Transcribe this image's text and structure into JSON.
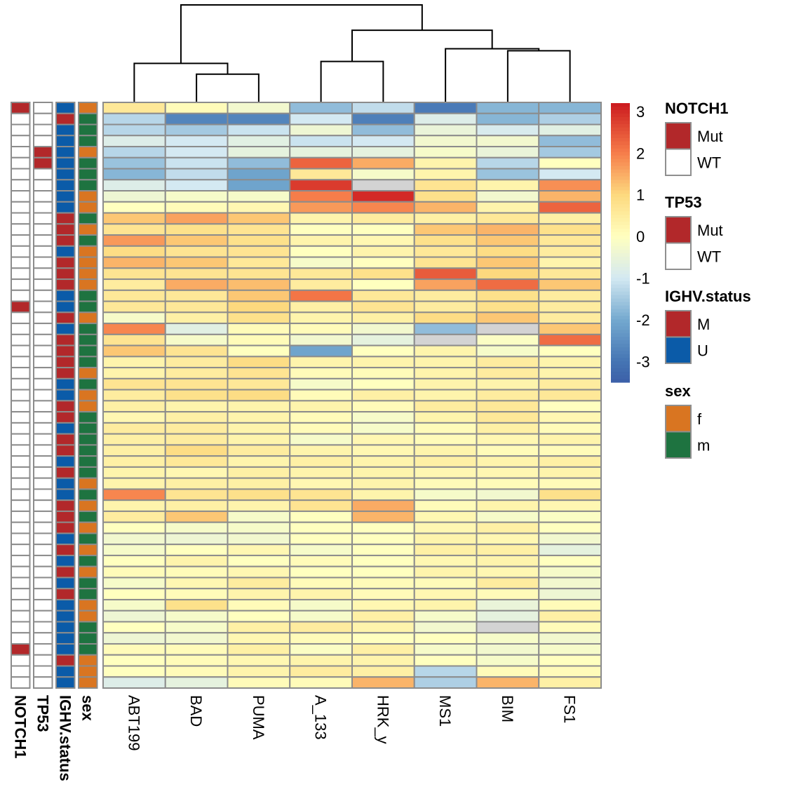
{
  "chart_data": {
    "type": "heatmap",
    "title": "",
    "columns": [
      "ABT199",
      "BAD",
      "PUMA",
      "A_133",
      "HRK_y",
      "MS1",
      "BIM",
      "FS1"
    ],
    "column_dendrogram": {
      "merges": [
        {
          "left": [
            "BAD"
          ],
          "right": [
            "PUMA"
          ],
          "height": 0.29
        },
        {
          "left": [
            "ABT199"
          ],
          "right": [
            "BAD",
            "PUMA"
          ],
          "height": 0.4
        },
        {
          "left": [
            "A_133"
          ],
          "right": [
            "HRK_y"
          ],
          "height": 0.42
        },
        {
          "left": [
            "BIM"
          ],
          "right": [
            "FS1"
          ],
          "height": 0.53
        },
        {
          "left": [
            "MS1"
          ],
          "right": [
            "BIM",
            "FS1"
          ],
          "height": 0.55
        },
        {
          "left": [
            "A_133",
            "HRK_y"
          ],
          "right": [
            "MS1",
            "BIM",
            "FS1"
          ],
          "height": 0.74
        },
        {
          "left": [
            "ABT199",
            "BAD",
            "PUMA"
          ],
          "right": [
            "A_133",
            "HRK_y",
            "MS1",
            "BIM",
            "FS1"
          ],
          "height": 1.0
        }
      ]
    },
    "values": [
      [
        0.6,
        0.1,
        -0.3,
        -1.7,
        -1.2,
        -2.9,
        -1.8,
        -1.8
      ],
      [
        -1.3,
        -2.7,
        -2.7,
        -1.0,
        -2.8,
        -0.8,
        -1.8,
        -1.4
      ],
      [
        -1.3,
        -1.5,
        -1.1,
        -0.4,
        -1.7,
        -0.5,
        -0.9,
        -0.7
      ],
      [
        -0.8,
        -1.0,
        -0.7,
        -1.1,
        -1.0,
        -0.3,
        -0.3,
        -1.7
      ],
      [
        -1.3,
        -1.0,
        -0.6,
        -0.6,
        -0.6,
        -0.2,
        -0.5,
        -1.5
      ],
      [
        -1.6,
        -1.1,
        -1.7,
        2.3,
        1.5,
        0.3,
        -1.3,
        0.0
      ],
      [
        -1.8,
        -1.2,
        -2.1,
        0.6,
        -0.2,
        0.3,
        -1.6,
        -1.0
      ],
      [
        -0.8,
        -1.0,
        -2.1,
        2.8,
        null,
        0.7,
        0.3,
        1.8
      ],
      [
        -0.4,
        -0.2,
        -0.2,
        2.0,
        3.0,
        0.8,
        -0.3,
        1.4
      ],
      [
        0.0,
        0.1,
        0.2,
        1.7,
        1.9,
        1.4,
        0.3,
        2.3
      ],
      [
        1.2,
        1.6,
        1.2,
        0.3,
        0.5,
        0.4,
        0.6,
        0.4
      ],
      [
        0.7,
        0.8,
        0.7,
        0.0,
        0.0,
        1.2,
        1.4,
        0.8
      ],
      [
        1.7,
        1.2,
        0.8,
        0.3,
        0.2,
        0.8,
        1.2,
        0.6
      ],
      [
        0.9,
        0.7,
        0.7,
        0.0,
        0.3,
        0.6,
        0.9,
        0.5
      ],
      [
        1.4,
        1.2,
        0.6,
        -0.2,
        0.0,
        0.7,
        1.2,
        0.3
      ],
      [
        0.7,
        0.7,
        0.7,
        0.6,
        0.8,
        2.4,
        1.0,
        0.6
      ],
      [
        0.5,
        1.5,
        1.3,
        0.5,
        0.0,
        1.6,
        2.2,
        1.2
      ],
      [
        0.6,
        0.6,
        1.2,
        2.1,
        0.6,
        0.5,
        0.8,
        0.5
      ],
      [
        0.6,
        0.6,
        1.0,
        0.4,
        0.7,
        0.5,
        0.8,
        0.5
      ],
      [
        -0.2,
        0.4,
        0.8,
        0.3,
        0.4,
        0.9,
        1.2,
        0.5
      ],
      [
        1.9,
        -0.7,
        0.1,
        0.1,
        -0.3,
        -1.7,
        null,
        1.2
      ],
      [
        0.7,
        -0.2,
        0.1,
        -0.3,
        -0.6,
        null,
        -0.1,
        2.2
      ],
      [
        1.2,
        0.7,
        0.0,
        -2.1,
        0.0,
        0.3,
        -0.2,
        0.0
      ],
      [
        0.3,
        0.5,
        0.9,
        0.3,
        0.3,
        0.3,
        0.5,
        0.3
      ],
      [
        0.3,
        0.5,
        0.7,
        0.1,
        0.1,
        0.3,
        0.5,
        0.3
      ],
      [
        0.7,
        0.7,
        0.6,
        -0.2,
        0.0,
        0.3,
        0.3,
        0.5
      ],
      [
        0.5,
        0.8,
        0.9,
        0.1,
        0.4,
        0.3,
        0.5,
        0.6
      ],
      [
        0.4,
        0.3,
        0.3,
        0.3,
        0.1,
        0.5,
        0.6,
        0.0
      ],
      [
        0.2,
        0.4,
        0.3,
        0.1,
        -0.2,
        0.3,
        0.6,
        0.2
      ],
      [
        0.5,
        0.5,
        0.3,
        0.1,
        -0.2,
        0.1,
        0.4,
        0.1
      ],
      [
        0.4,
        0.5,
        0.3,
        -0.2,
        0.2,
        0.1,
        0.2,
        0.3
      ],
      [
        0.4,
        0.9,
        0.5,
        0.3,
        0.2,
        0.3,
        0.1,
        0.1
      ],
      [
        0.4,
        0.6,
        0.3,
        0.4,
        0.3,
        0.4,
        0.3,
        0.4
      ],
      [
        0.3,
        0.2,
        0.4,
        0.3,
        0.3,
        0.2,
        0.2,
        0.3
      ],
      [
        0.3,
        0.4,
        0.4,
        0.2,
        0.3,
        0.1,
        0.1,
        0.1
      ],
      [
        1.9,
        0.7,
        0.8,
        0.7,
        0.3,
        -0.2,
        -0.3,
        0.8
      ],
      [
        0.3,
        0.4,
        0.3,
        0.7,
        1.5,
        0.1,
        0.3,
        0.2
      ],
      [
        0.5,
        1.2,
        -0.2,
        0.0,
        1.4,
        0.2,
        -0.2,
        -0.1
      ],
      [
        0.0,
        -0.2,
        -0.2,
        0.0,
        0.0,
        0.2,
        0.4,
        0.0
      ],
      [
        -0.3,
        -0.4,
        -0.3,
        0.0,
        0.0,
        0.3,
        0.2,
        -0.3
      ],
      [
        -0.2,
        0.0,
        0.2,
        -0.2,
        0.0,
        0.4,
        0.4,
        -0.6
      ],
      [
        0.0,
        0.3,
        0.0,
        0.1,
        0.0,
        0.2,
        0.3,
        0.0
      ],
      [
        0.1,
        0.1,
        0.2,
        0.0,
        0.0,
        0.3,
        0.2,
        -0.2
      ],
      [
        -0.2,
        0.2,
        0.5,
        0.1,
        0.1,
        0.1,
        0.5,
        -0.3
      ],
      [
        0.0,
        0.1,
        0.3,
        0.3,
        0.1,
        0.2,
        0.1,
        -0.4
      ],
      [
        -0.2,
        0.8,
        0.1,
        -0.2,
        0.2,
        0.3,
        -0.5,
        0.1
      ],
      [
        -0.4,
        -0.2,
        0.0,
        -0.2,
        0.4,
        -0.2,
        -0.6,
        0.4
      ],
      [
        0.0,
        -0.2,
        0.4,
        0.5,
        0.3,
        -0.3,
        null,
        0.1
      ],
      [
        -0.4,
        -0.3,
        0.2,
        0.1,
        0.0,
        0.0,
        -0.2,
        -0.3
      ],
      [
        0.1,
        0.1,
        0.4,
        -0.1,
        0.4,
        -0.2,
        -0.3,
        -0.2
      ],
      [
        0.0,
        0.1,
        0.2,
        0.3,
        0.3,
        0.0,
        -0.2,
        0.0
      ],
      [
        0.0,
        0.1,
        0.3,
        0.5,
        0.4,
        -1.3,
        0.1,
        0.1
      ],
      [
        -0.8,
        -0.6,
        0.1,
        0.1,
        1.4,
        -1.4,
        1.4,
        0.4
      ]
    ],
    "na_color": "#D3D3D3",
    "color_scale": {
      "range": [
        -3.5,
        3.2
      ],
      "stops": [
        {
          "value": -3.5,
          "color": "#3B5FA8"
        },
        {
          "value": -3,
          "color": "#4575B4"
        },
        {
          "value": -2,
          "color": "#74A9CF"
        },
        {
          "value": -1,
          "color": "#D4E9F2"
        },
        {
          "value": 0,
          "color": "#FFFFBF"
        },
        {
          "value": 1,
          "color": "#FDD97E"
        },
        {
          "value": 2,
          "color": "#F67D4A"
        },
        {
          "value": 3,
          "color": "#D32A26"
        },
        {
          "value": 3.2,
          "color": "#CC1A1F"
        }
      ],
      "ticks": [
        "3",
        "2",
        "1",
        "0",
        "-1",
        "-2",
        "-3"
      ],
      "tick_values": [
        3,
        2,
        1,
        0,
        -1,
        -2,
        -3
      ]
    },
    "annotations": [
      {
        "name": "NOTCH1",
        "colors": {
          "Mut": "#B2282A",
          "WT": "#FFFFFF"
        },
        "values": [
          "Mut",
          "WT",
          "WT",
          "WT",
          "WT",
          "WT",
          "WT",
          "WT",
          "WT",
          "WT",
          "WT",
          "WT",
          "WT",
          "WT",
          "WT",
          "WT",
          "WT",
          "WT",
          "Mut",
          "WT",
          "WT",
          "WT",
          "WT",
          "WT",
          "WT",
          "WT",
          "WT",
          "WT",
          "WT",
          "WT",
          "WT",
          "WT",
          "WT",
          "WT",
          "WT",
          "WT",
          "WT",
          "WT",
          "WT",
          "WT",
          "WT",
          "WT",
          "WT",
          "WT",
          "WT",
          "WT",
          "WT",
          "WT",
          "WT",
          "Mut",
          "WT",
          "WT",
          "WT"
        ]
      },
      {
        "name": "TP53",
        "colors": {
          "Mut": "#B2282A",
          "WT": "#FFFFFF"
        },
        "values": [
          "WT",
          "WT",
          "WT",
          "WT",
          "Mut",
          "Mut",
          "WT",
          "WT",
          "WT",
          "WT",
          "WT",
          "WT",
          "WT",
          "WT",
          "WT",
          "WT",
          "WT",
          "WT",
          "WT",
          "WT",
          "WT",
          "WT",
          "WT",
          "WT",
          "WT",
          "WT",
          "WT",
          "WT",
          "WT",
          "WT",
          "WT",
          "WT",
          "WT",
          "WT",
          "WT",
          "WT",
          "WT",
          "WT",
          "WT",
          "WT",
          "WT",
          "WT",
          "WT",
          "WT",
          "WT",
          "WT",
          "WT",
          "WT",
          "WT",
          "WT",
          "WT",
          "WT",
          "WT"
        ]
      },
      {
        "name": "IGHV.status",
        "colors": {
          "M": "#B2282A",
          "U": "#0B5BA8"
        },
        "values": [
          "U",
          "M",
          "U",
          "U",
          "U",
          "U",
          "U",
          "U",
          "U",
          "U",
          "M",
          "M",
          "M",
          "U",
          "M",
          "M",
          "M",
          "U",
          "U",
          "M",
          "U",
          "M",
          "M",
          "M",
          "M",
          "U",
          "U",
          "M",
          "M",
          "U",
          "M",
          "M",
          "U",
          "M",
          "U",
          "U",
          "M",
          "M",
          "M",
          "U",
          "M",
          "U",
          "M",
          "U",
          "M",
          "U",
          "U",
          "U",
          "U",
          "U",
          "M",
          "U",
          "U"
        ]
      },
      {
        "name": "sex",
        "colors": {
          "f": "#D97521",
          "m": "#1E7340"
        },
        "values": [
          "f",
          "m",
          "m",
          "m",
          "f",
          "m",
          "m",
          "m",
          "f",
          "f",
          "m",
          "f",
          "m",
          "f",
          "f",
          "f",
          "f",
          "m",
          "m",
          "f",
          "m",
          "m",
          "m",
          "m",
          "f",
          "m",
          "f",
          "f",
          "m",
          "m",
          "m",
          "m",
          "m",
          "m",
          "f",
          "m",
          "f",
          "m",
          "f",
          "m",
          "f",
          "m",
          "f",
          "m",
          "m",
          "f",
          "f",
          "m",
          "m",
          "m",
          "f",
          "f",
          "f"
        ]
      }
    ]
  },
  "legends": [
    {
      "title": "NOTCH1",
      "items": [
        {
          "label": "Mut",
          "color": "#B2282A"
        },
        {
          "label": "WT",
          "color": "#FFFFFF"
        }
      ]
    },
    {
      "title": "TP53",
      "items": [
        {
          "label": "Mut",
          "color": "#B2282A"
        },
        {
          "label": "WT",
          "color": "#FFFFFF"
        }
      ]
    },
    {
      "title": "IGHV.status",
      "items": [
        {
          "label": "M",
          "color": "#B2282A"
        },
        {
          "label": "U",
          "color": "#0B5BA8"
        }
      ]
    },
    {
      "title": "sex",
      "items": [
        {
          "label": "f",
          "color": "#D97521"
        },
        {
          "label": "m",
          "color": "#1E7340"
        }
      ]
    }
  ]
}
